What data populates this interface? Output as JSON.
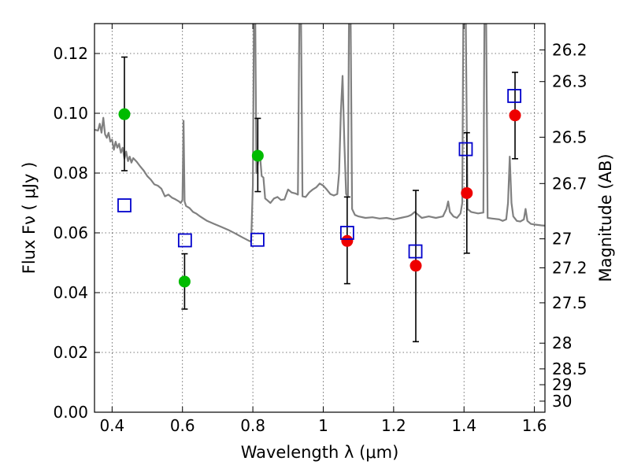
{
  "chart_data": {
    "type": "scatter",
    "title": "",
    "xlabel": "Wavelength  λ (μm)",
    "ylabel": "Flux  Fν  ( μJy )",
    "ylabel_right": "Magnitude (AB)",
    "xlim": [
      0.35,
      1.63
    ],
    "ylim": [
      0.0,
      0.13
    ],
    "grid": true,
    "x_ticks": [
      0.4,
      0.6,
      0.8,
      1.0,
      1.2,
      1.4,
      1.6
    ],
    "x_tick_labels": [
      "0.4",
      "0.6",
      "0.8",
      "1",
      "1.2",
      "1.4",
      "1.6"
    ],
    "y_ticks": [
      0.0,
      0.02,
      0.04,
      0.06,
      0.08,
      0.1,
      0.12
    ],
    "y_tick_labels": [
      "0.00",
      "0.02",
      "0.04",
      "0.06",
      "0.08",
      "0.10",
      "0.12"
    ],
    "right_ticks": [
      {
        "label": "26.2",
        "flux": 0.1212
      },
      {
        "label": "26.3",
        "flux": 0.1106
      },
      {
        "label": "26.5",
        "flux": 0.092
      },
      {
        "label": "26.7",
        "flux": 0.0765
      },
      {
        "label": "27",
        "flux": 0.058
      },
      {
        "label": "27.2",
        "flux": 0.0483
      },
      {
        "label": "27.5",
        "flux": 0.0366
      },
      {
        "label": "28",
        "flux": 0.0231
      },
      {
        "label": "28.5",
        "flux": 0.0145
      },
      {
        "label": "29",
        "flux": 0.0092
      },
      {
        "label": "30",
        "flux": 0.0037
      }
    ],
    "colors": {
      "model": "#808080",
      "green": "#00bb00",
      "red": "#ee0000",
      "model_box": "#0000cc",
      "errorbar": "#000000"
    },
    "series": [
      {
        "kind": "line",
        "points": [
          [
            0.35,
            0.0945
          ],
          [
            0.36,
            0.0942
          ],
          [
            0.365,
            0.0965
          ],
          [
            0.37,
            0.0935
          ],
          [
            0.375,
            0.0985
          ],
          [
            0.38,
            0.093
          ],
          [
            0.385,
            0.0918
          ],
          [
            0.39,
            0.0935
          ],
          [
            0.395,
            0.0905
          ],
          [
            0.4,
            0.0912
          ],
          [
            0.405,
            0.0878
          ],
          [
            0.41,
            0.0905
          ],
          [
            0.415,
            0.0885
          ],
          [
            0.42,
            0.0898
          ],
          [
            0.425,
            0.0868
          ],
          [
            0.43,
            0.0885
          ],
          [
            0.435,
            0.0848
          ],
          [
            0.44,
            0.0872
          ],
          [
            0.445,
            0.084
          ],
          [
            0.45,
            0.0855
          ],
          [
            0.455,
            0.0835
          ],
          [
            0.46,
            0.085
          ],
          [
            0.47,
            0.0838
          ],
          [
            0.48,
            0.0822
          ],
          [
            0.49,
            0.0808
          ],
          [
            0.5,
            0.079
          ],
          [
            0.51,
            0.0778
          ],
          [
            0.52,
            0.0762
          ],
          [
            0.53,
            0.0758
          ],
          [
            0.54,
            0.0748
          ],
          [
            0.55,
            0.0722
          ],
          [
            0.56,
            0.0728
          ],
          [
            0.57,
            0.0718
          ],
          [
            0.58,
            0.0712
          ],
          [
            0.59,
            0.0705
          ],
          [
            0.595,
            0.07
          ],
          [
            0.6,
            0.071
          ],
          [
            0.603,
            0.0975
          ],
          [
            0.606,
            0.0705
          ],
          [
            0.61,
            0.069
          ],
          [
            0.62,
            0.0683
          ],
          [
            0.63,
            0.067
          ],
          [
            0.64,
            0.0664
          ],
          [
            0.65,
            0.0655
          ],
          [
            0.67,
            0.064
          ],
          [
            0.69,
            0.063
          ],
          [
            0.71,
            0.062
          ],
          [
            0.73,
            0.061
          ],
          [
            0.75,
            0.0598
          ],
          [
            0.77,
            0.0585
          ],
          [
            0.79,
            0.0573
          ],
          [
            0.795,
            0.057
          ],
          [
            0.8,
            0.076
          ],
          [
            0.803,
            0.13
          ],
          [
            0.807,
            0.13
          ],
          [
            0.81,
            0.08
          ],
          [
            0.815,
            0.084
          ],
          [
            0.82,
            0.0865
          ],
          [
            0.825,
            0.079
          ],
          [
            0.83,
            0.0785
          ],
          [
            0.835,
            0.0715
          ],
          [
            0.84,
            0.071
          ],
          [
            0.85,
            0.07
          ],
          [
            0.86,
            0.0715
          ],
          [
            0.87,
            0.072
          ],
          [
            0.88,
            0.071
          ],
          [
            0.89,
            0.0712
          ],
          [
            0.9,
            0.0745
          ],
          [
            0.91,
            0.0735
          ],
          [
            0.92,
            0.0732
          ],
          [
            0.928,
            0.0728
          ],
          [
            0.932,
            0.13
          ],
          [
            0.937,
            0.13
          ],
          [
            0.941,
            0.0722
          ],
          [
            0.95,
            0.072
          ],
          [
            0.96,
            0.0735
          ],
          [
            0.97,
            0.0745
          ],
          [
            0.98,
            0.0752
          ],
          [
            0.99,
            0.0765
          ],
          [
            1.0,
            0.0758
          ],
          [
            1.01,
            0.0745
          ],
          [
            1.02,
            0.073
          ],
          [
            1.03,
            0.0725
          ],
          [
            1.04,
            0.073
          ],
          [
            1.045,
            0.08
          ],
          [
            1.05,
            0.1
          ],
          [
            1.055,
            0.1125
          ],
          [
            1.06,
            0.09
          ],
          [
            1.065,
            0.073
          ],
          [
            1.07,
            0.072
          ],
          [
            1.073,
            0.13
          ],
          [
            1.078,
            0.13
          ],
          [
            1.082,
            0.068
          ],
          [
            1.09,
            0.066
          ],
          [
            1.1,
            0.0655
          ],
          [
            1.12,
            0.065
          ],
          [
            1.14,
            0.0652
          ],
          [
            1.16,
            0.0648
          ],
          [
            1.18,
            0.065
          ],
          [
            1.2,
            0.0645
          ],
          [
            1.22,
            0.065
          ],
          [
            1.24,
            0.0655
          ],
          [
            1.25,
            0.066
          ],
          [
            1.26,
            0.067
          ],
          [
            1.27,
            0.066
          ],
          [
            1.28,
            0.065
          ],
          [
            1.3,
            0.0655
          ],
          [
            1.32,
            0.065
          ],
          [
            1.34,
            0.0655
          ],
          [
            1.35,
            0.068
          ],
          [
            1.355,
            0.0705
          ],
          [
            1.36,
            0.067
          ],
          [
            1.37,
            0.0655
          ],
          [
            1.38,
            0.065
          ],
          [
            1.39,
            0.0665
          ],
          [
            1.395,
            0.07
          ],
          [
            1.398,
            0.13
          ],
          [
            1.405,
            0.13
          ],
          [
            1.41,
            0.068
          ],
          [
            1.42,
            0.067
          ],
          [
            1.44,
            0.0665
          ],
          [
            1.455,
            0.0668
          ],
          [
            1.458,
            0.13
          ],
          [
            1.463,
            0.13
          ],
          [
            1.467,
            0.065
          ],
          [
            1.48,
            0.0648
          ],
          [
            1.5,
            0.0645
          ],
          [
            1.51,
            0.064
          ],
          [
            1.52,
            0.0645
          ],
          [
            1.525,
            0.07
          ],
          [
            1.53,
            0.0855
          ],
          [
            1.535,
            0.07
          ],
          [
            1.54,
            0.0655
          ],
          [
            1.55,
            0.064
          ],
          [
            1.56,
            0.0638
          ],
          [
            1.57,
            0.0645
          ],
          [
            1.575,
            0.068
          ],
          [
            1.58,
            0.064
          ],
          [
            1.59,
            0.063
          ],
          [
            1.6,
            0.0628
          ],
          [
            1.62,
            0.0625
          ],
          [
            1.63,
            0.0624
          ]
        ]
      },
      {
        "kind": "points-green",
        "points": [
          {
            "x": 0.435,
            "y": 0.0997,
            "low": 0.0808,
            "high": 0.1188
          },
          {
            "x": 0.606,
            "y": 0.0437,
            "low": 0.0345,
            "high": 0.053
          },
          {
            "x": 0.814,
            "y": 0.0858,
            "low": 0.0738,
            "high": 0.0983
          }
        ]
      },
      {
        "kind": "points-red",
        "points": [
          {
            "x": 1.068,
            "y": 0.0573,
            "low": 0.043,
            "high": 0.072
          },
          {
            "x": 1.263,
            "y": 0.049,
            "low": 0.0236,
            "high": 0.0742
          },
          {
            "x": 1.408,
            "y": 0.0733,
            "low": 0.0532,
            "high": 0.0935
          },
          {
            "x": 1.545,
            "y": 0.0993,
            "low": 0.0848,
            "high": 0.1137
          }
        ]
      },
      {
        "kind": "model-boxes",
        "points": [
          {
            "x": 0.435,
            "y": 0.0692
          },
          {
            "x": 0.607,
            "y": 0.0575
          },
          {
            "x": 0.813,
            "y": 0.0577
          },
          {
            "x": 1.068,
            "y": 0.06
          },
          {
            "x": 1.262,
            "y": 0.0538
          },
          {
            "x": 1.405,
            "y": 0.088
          },
          {
            "x": 1.543,
            "y": 0.1058
          }
        ]
      }
    ]
  }
}
